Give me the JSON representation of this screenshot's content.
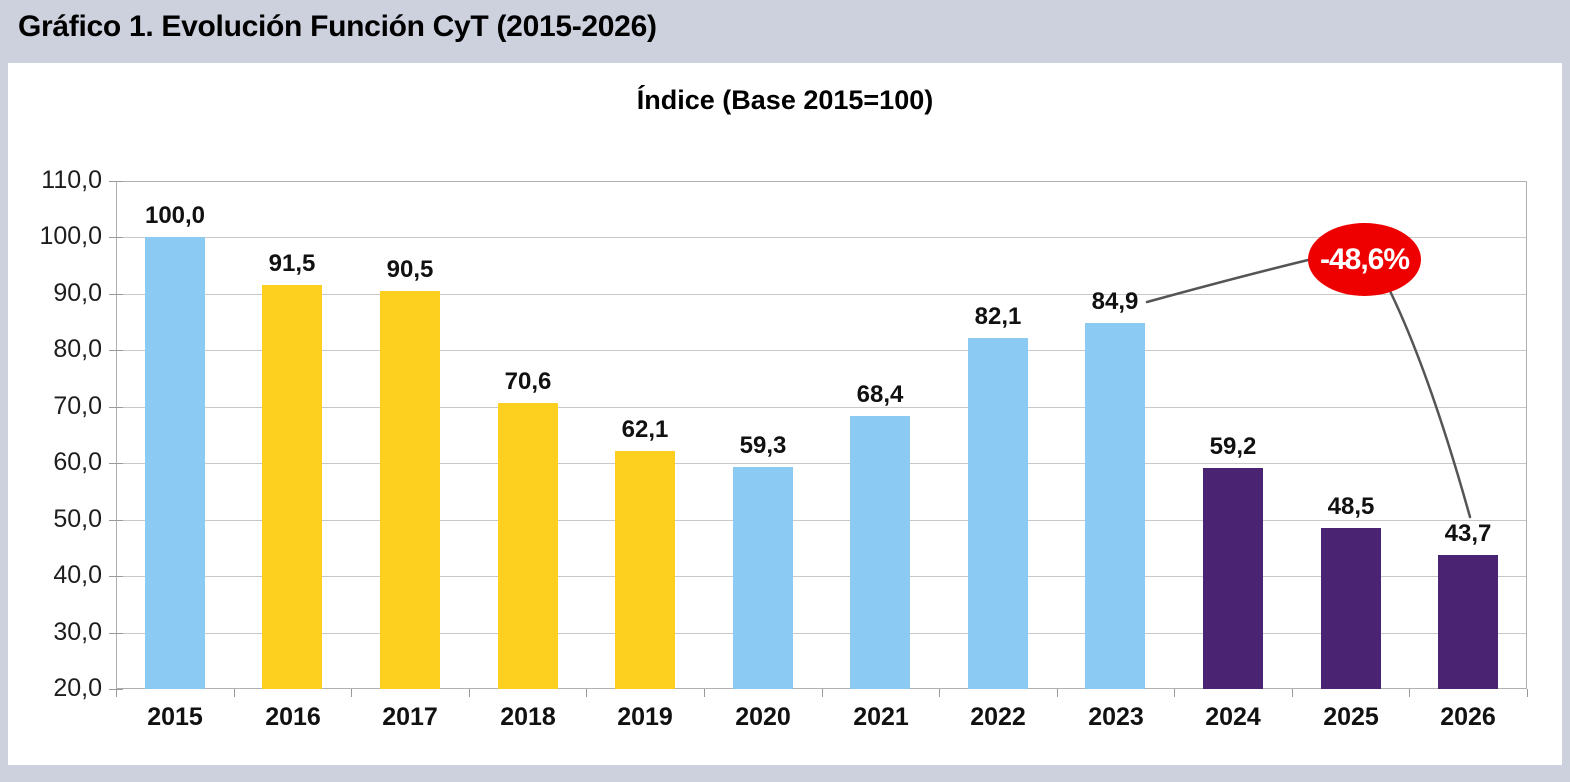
{
  "header": {
    "title": "Gráfico 1. Evolución Función CyT (2015-2026)"
  },
  "chart_data": {
    "type": "bar",
    "title": "Índice (Base 2015=100)",
    "categories": [
      "2015",
      "2016",
      "2017",
      "2018",
      "2019",
      "2020",
      "2021",
      "2022",
      "2023",
      "2024",
      "2025",
      "2026"
    ],
    "values": [
      100.0,
      91.5,
      90.5,
      70.6,
      62.1,
      59.3,
      68.4,
      82.1,
      84.9,
      59.2,
      48.5,
      43.7
    ],
    "value_labels": [
      "100,0",
      "91,5",
      "90,5",
      "70,6",
      "62,1",
      "59,3",
      "68,4",
      "82,1",
      "84,9",
      "59,2",
      "48,5",
      "43,7"
    ],
    "bar_colors": [
      "#8BCAF3",
      "#FDD020",
      "#FDD020",
      "#FDD020",
      "#FDD020",
      "#8BCAF3",
      "#8BCAF3",
      "#8BCAF3",
      "#8BCAF3",
      "#4A2472",
      "#4A2472",
      "#4A2472"
    ],
    "xlabel": "",
    "ylabel": "",
    "ylim": [
      20,
      110
    ],
    "y_ticks": [
      20,
      30,
      40,
      50,
      60,
      70,
      80,
      90,
      100,
      110
    ],
    "y_tick_labels": [
      "20,0",
      "30,0",
      "40,0",
      "50,0",
      "60,0",
      "70,0",
      "80,0",
      "90,0",
      "100,0",
      "110,0"
    ],
    "grid": true,
    "legend_position": "none",
    "annotation": {
      "text": "-48,6%",
      "fill_color": "#EE0000",
      "text_color": "#FFFFFF",
      "connects_from": "2023",
      "connects_to": "2026"
    }
  },
  "colors": {
    "background": "#CDD1DE",
    "panel": "#FFFFFF",
    "gridline": "#C8C8C8",
    "frame": "#B0B0B0",
    "connector_line": "#555555"
  }
}
